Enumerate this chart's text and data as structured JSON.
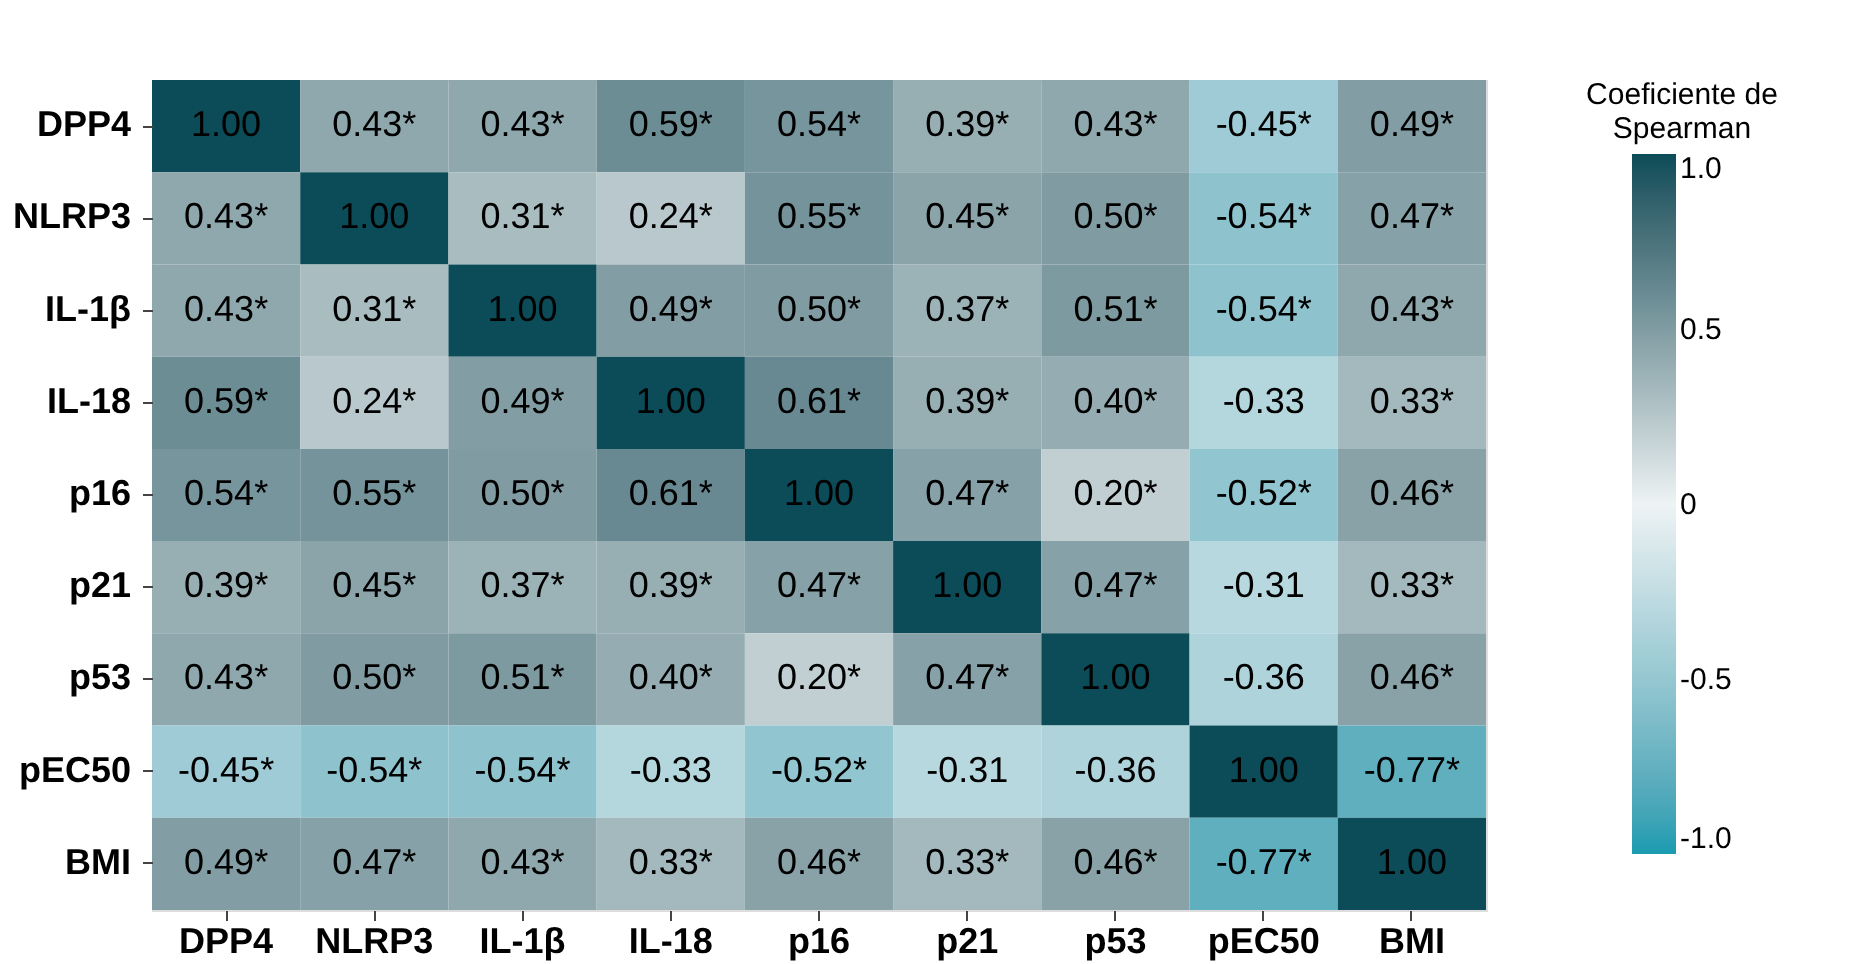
{
  "chart_data": {
    "type": "heatmap",
    "legend_title": "Coeficiente de Spearman",
    "categories": [
      "DPP4",
      "NLRP3",
      "IL-1β",
      "IL-18",
      "p16",
      "p21",
      "p53",
      "pEC50",
      "BMI"
    ],
    "y_categories": [
      "DPP4",
      "NLRP3",
      "IL-1β",
      "IL-18",
      "p16",
      "p21",
      "p53",
      "pEC50",
      "BMI"
    ],
    "cells": [
      [
        1.0,
        0.43,
        0.43,
        0.59,
        0.54,
        0.39,
        0.43,
        -0.45,
        0.49
      ],
      [
        0.43,
        1.0,
        0.31,
        0.24,
        0.55,
        0.45,
        0.5,
        -0.54,
        0.47
      ],
      [
        0.43,
        0.31,
        1.0,
        0.49,
        0.5,
        0.37,
        0.51,
        -0.54,
        0.43
      ],
      [
        0.59,
        0.24,
        0.49,
        1.0,
        0.61,
        0.39,
        0.4,
        -0.33,
        0.33
      ],
      [
        0.54,
        0.55,
        0.5,
        0.61,
        1.0,
        0.47,
        0.2,
        -0.52,
        0.46
      ],
      [
        0.39,
        0.45,
        0.37,
        0.39,
        0.47,
        1.0,
        0.47,
        -0.31,
        0.33
      ],
      [
        0.43,
        0.5,
        0.51,
        0.4,
        0.2,
        0.47,
        1.0,
        -0.36,
        0.46
      ],
      [
        -0.45,
        -0.54,
        -0.54,
        -0.33,
        -0.52,
        -0.31,
        -0.36,
        1.0,
        -0.77
      ],
      [
        0.49,
        0.47,
        0.43,
        0.33,
        0.46,
        0.33,
        0.46,
        -0.77,
        1.0
      ]
    ],
    "cell_labels": [
      [
        "1.00",
        "0.43*",
        "0.43*",
        "0.59*",
        "0.54*",
        "0.39*",
        "0.43*",
        "-0.45*",
        "0.49*"
      ],
      [
        "0.43*",
        "1.00",
        "0.31*",
        "0.24*",
        "0.55*",
        "0.45*",
        "0.50*",
        "-0.54*",
        "0.47*"
      ],
      [
        "0.43*",
        "0.31*",
        "1.00",
        "0.49*",
        "0.50*",
        "0.37*",
        "0.51*",
        "-0.54*",
        "0.43*"
      ],
      [
        "0.59*",
        "0.24*",
        "0.49*",
        "1.00",
        "0.61*",
        "0.39*",
        "0.40*",
        "-0.33",
        "0.33*"
      ],
      [
        "0.54*",
        "0.55*",
        "0.50*",
        "0.61*",
        "1.00",
        "0.47*",
        "0.20*",
        "-0.52*",
        "0.46*"
      ],
      [
        "0.39*",
        "0.45*",
        "0.37*",
        "0.39*",
        "0.47*",
        "1.00",
        "0.47*",
        "-0.31",
        "0.33*"
      ],
      [
        "0.43*",
        "0.50*",
        "0.51*",
        "0.40*",
        "0.20*",
        "0.47*",
        "1.00",
        "-0.36",
        "0.46*"
      ],
      [
        "-0.45*",
        "-0.54*",
        "-0.54*",
        "-0.33",
        "-0.52*",
        "-0.31",
        "-0.36",
        "1.00",
        "-0.77*"
      ],
      [
        "0.49*",
        "0.47*",
        "0.43*",
        "0.33*",
        "0.46*",
        "0.33*",
        "0.46*",
        "-0.77*",
        "1.00"
      ]
    ],
    "colors": [
      "#1a9bb0",
      "#eef3f4",
      "#0c4c58"
    ],
    "clim": [
      -1,
      1
    ],
    "cticks": [
      {
        "value": 1,
        "label": "1.0"
      },
      {
        "value": 0.5,
        "label": "0.5"
      },
      0,
      {
        "value": -0.5,
        "label": "-0.5"
      },
      {
        "value": -1,
        "label": "-1.0"
      }
    ]
  }
}
